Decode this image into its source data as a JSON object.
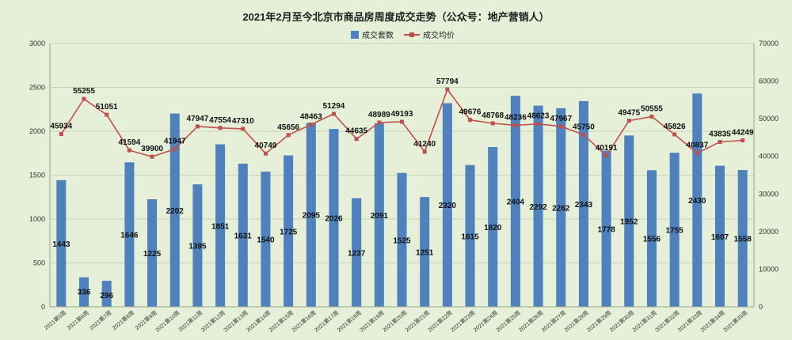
{
  "chart_data": {
    "type": "bar",
    "title": "2021年2月至今北京市商品房周度成交走势（公众号：地产营销人）",
    "categories": [
      "2021第5周",
      "2021第6周",
      "2021第7周",
      "2021第8周",
      "2021第9周",
      "2021第10周",
      "2021第11周",
      "2021第12周",
      "2021第13周",
      "2021第14周",
      "2021第15周",
      "2021第16周",
      "2021第17周",
      "2021第18周",
      "2021第19周",
      "2021第20周",
      "2021第21周",
      "2021第22周",
      "2021第23周",
      "2021第24周",
      "2021第25周",
      "2021第26周",
      "2021第27周",
      "2021第28周",
      "2021第29周",
      "2021第30周",
      "2021第31周",
      "2021第32周",
      "2021第33周",
      "2021第34周",
      "2021第35周"
    ],
    "series": [
      {
        "name": "成交套数",
        "type": "bar",
        "axis": "left",
        "color": "#4f81bd",
        "values": [
          1443,
          336,
          296,
          1646,
          1225,
          2202,
          1395,
          1851,
          1631,
          1540,
          1725,
          2095,
          2026,
          1237,
          2091,
          1525,
          1251,
          2320,
          1615,
          1820,
          2404,
          2292,
          2262,
          2343,
          1778,
          1952,
          1556,
          1755,
          2430,
          1607,
          1558
        ]
      },
      {
        "name": "成交均价",
        "type": "line",
        "axis": "right",
        "color": "#c0504d",
        "values": [
          45934,
          55255,
          51051,
          41594,
          39900,
          41947,
          47947,
          47554,
          47310,
          40749,
          45656,
          48463,
          51294,
          44635,
          48989,
          49193,
          41240,
          57794,
          49676,
          48768,
          48236,
          48623,
          47967,
          45750,
          40191,
          49475,
          50555,
          45826,
          40837,
          43835,
          44249
        ]
      }
    ],
    "y_left": {
      "min": 0,
      "max": 3000,
      "step": 500,
      "ticks": [
        "0",
        "500",
        "1000",
        "1500",
        "2000",
        "2500",
        "3000"
      ]
    },
    "y_right": {
      "min": 0,
      "max": 70000,
      "step": 10000,
      "ticks": [
        "0",
        "10000",
        "20000",
        "30000",
        "40000",
        "50000",
        "60000",
        "70000"
      ]
    },
    "legend_position": "top-center",
    "grid": true
  }
}
